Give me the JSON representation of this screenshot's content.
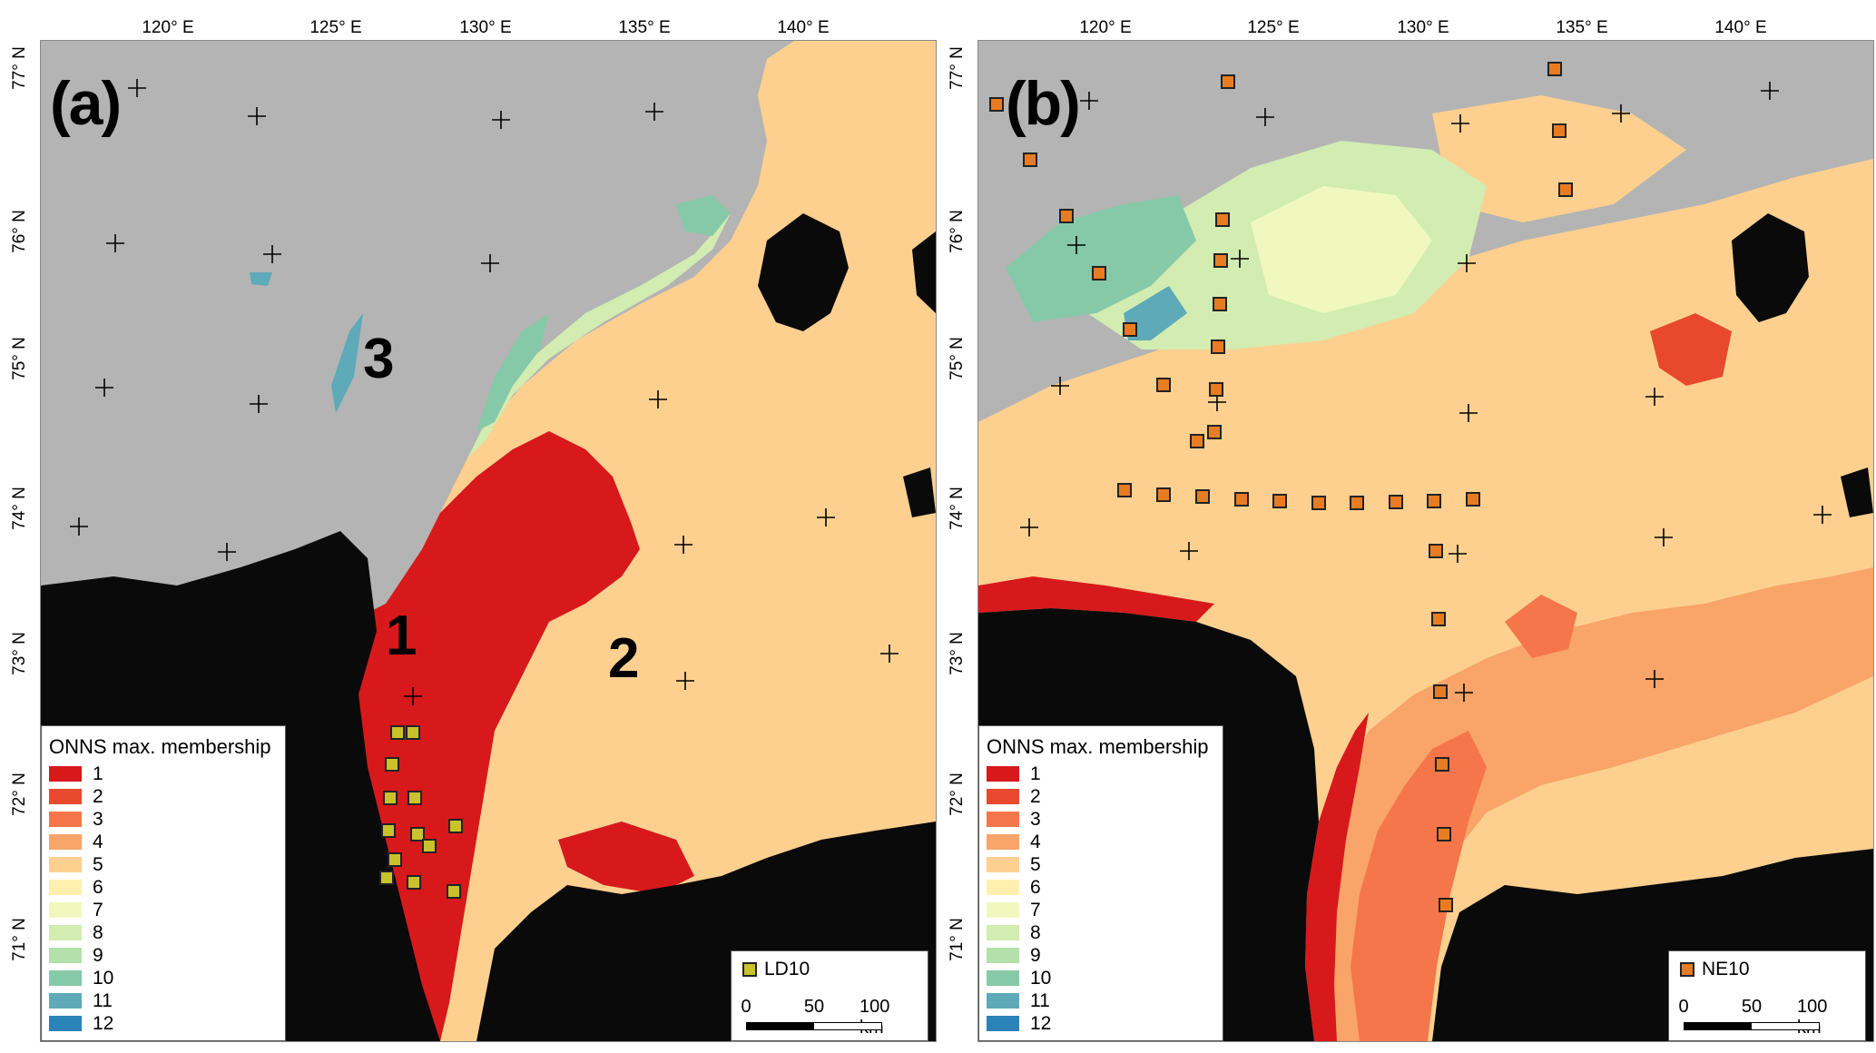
{
  "colors": {
    "land": "#0a0a0a",
    "nodata": "#b4b4b4",
    "classes": [
      "#d7191c",
      "#e8492e",
      "#f4764a",
      "#f9a468",
      "#fdd090",
      "#fff0b0",
      "#f0f8c0",
      "#d2ecb2",
      "#b4e0ab",
      "#86c9a8",
      "#5eaab8",
      "#2b83ba"
    ],
    "ld10_marker": "#c9c22c",
    "ne10_marker": "#e87c23"
  },
  "longitude_labels": [
    "120° E",
    "125° E",
    "130° E",
    "135° E",
    "140° E"
  ],
  "latitude_labels": [
    "77° N",
    "76° N",
    "75° N",
    "74° N",
    "73° N",
    "72° N",
    "71° N"
  ],
  "legend": {
    "title": "ONNS max. membership",
    "classes": [
      "1",
      "2",
      "3",
      "4",
      "5",
      "6",
      "7",
      "8",
      "9",
      "10",
      "11",
      "12"
    ]
  },
  "scale_bar": {
    "ticks": [
      "0",
      "50",
      "100 km"
    ]
  },
  "panels": [
    {
      "letter": "(a)",
      "station_label": "LD10",
      "region_labels": [
        "1",
        "2",
        "3"
      ]
    },
    {
      "letter": "(b)",
      "station_label": "NE10"
    }
  ]
}
